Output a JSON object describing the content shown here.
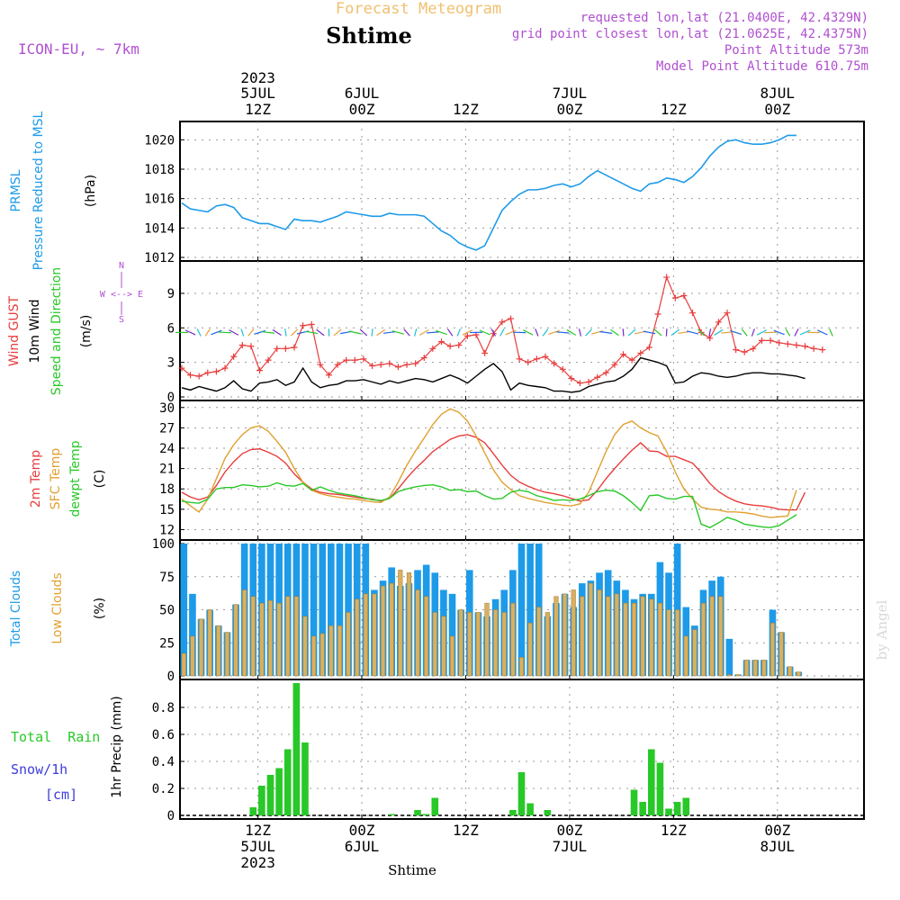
{
  "header": {
    "product_title": "Forecast Meteogram",
    "location": "Shtime",
    "model": "ICON-EU, ~ 7km",
    "requested": "requested lon,lat (21.0400E, 42.4329N)",
    "grid_point": "grid point closest lon,lat (21.0625E, 42.4375N)",
    "point_altitude": "Point Altitude 573m",
    "model_altitude": "Model Point Altitude 610.75m",
    "watermark": "by Angel",
    "footer": "Shtime"
  },
  "colors": {
    "pressure": "#1e9be8",
    "gust": "#e83c3c",
    "wind": "#000000",
    "wind_arrows": [
      "#28c828",
      "#1ebed2",
      "#1e64e6",
      "#7828c8",
      "#e6a03c"
    ],
    "temp": "#e83c3c",
    "sfc_temp": "#e0a030",
    "dewpt": "#28c828",
    "total_clouds": "#1e9be8",
    "low_clouds": "#d8b060",
    "precip": "#28c828",
    "purple": "#b050d0",
    "orange_title": "#f0c070"
  },
  "time_axis": {
    "top_ticks": [
      {
        "date": "5JUL",
        "hour": "12Z",
        "year": "2023"
      },
      {
        "date": "6JUL",
        "hour": "00Z",
        "year": ""
      },
      {
        "date": "",
        "hour": "12Z",
        "year": ""
      },
      {
        "date": "7JUL",
        "hour": "00Z",
        "year": ""
      },
      {
        "date": "",
        "hour": "12Z",
        "year": ""
      },
      {
        "date": "8JUL",
        "hour": "00Z",
        "year": ""
      }
    ],
    "bottom_ticks": [
      {
        "hour": "12Z",
        "date": "5JUL",
        "year": "2023"
      },
      {
        "hour": "00Z",
        "date": "6JUL",
        "year": ""
      },
      {
        "hour": "12Z",
        "date": "",
        "year": ""
      },
      {
        "hour": "00Z",
        "date": "7JUL",
        "year": ""
      },
      {
        "hour": "12Z",
        "date": "",
        "year": ""
      },
      {
        "hour": "00Z",
        "date": "8JUL",
        "year": ""
      }
    ]
  },
  "panels": {
    "pressure": {
      "labels": [
        "PRMSL",
        "Pressure Reduced to MSL"
      ],
      "unit": "(hPa)"
    },
    "wind": {
      "labels": [
        "Wind GUST",
        "10m Wind",
        "Speed and Direction"
      ],
      "unit": "(m/s)",
      "compass": [
        "N",
        "W <--> E",
        "S"
      ]
    },
    "temp": {
      "labels": [
        "2m Temp",
        "SFC Temp",
        "dewpt Temp"
      ],
      "unit": "(C)"
    },
    "clouds": {
      "labels": [
        "Total Clouds",
        "Low Clouds"
      ],
      "unit": "(%)"
    },
    "precip": {
      "labels": [
        "Total  Rain",
        "Snow/1h",
        "[cm]"
      ],
      "unit": "1hr Precip (mm)"
    }
  },
  "chart_data": [
    {
      "type": "line",
      "title": "PRMSL Pressure Reduced to MSL",
      "ylabel": "(hPa)",
      "ylim": [
        1012,
        1021
      ],
      "yticks": [
        1012,
        1014,
        1016,
        1018,
        1020
      ],
      "x_hours_from_start": [
        0,
        1,
        2,
        3,
        4,
        5,
        6,
        7,
        8,
        9,
        10,
        11,
        12,
        13,
        14,
        15,
        16,
        17,
        18,
        19,
        20,
        21,
        22,
        23,
        24,
        25,
        26,
        27,
        28,
        29,
        30,
        31,
        32,
        33,
        34,
        35,
        36,
        37,
        38,
        39,
        40,
        41,
        42,
        43,
        44,
        45,
        46,
        47,
        48,
        49,
        50,
        51,
        52,
        53,
        54,
        55,
        56,
        57,
        58,
        59,
        60,
        61,
        62,
        63,
        64,
        65,
        66,
        67,
        68,
        69,
        70,
        71,
        72,
        73,
        74,
        75,
        76,
        77,
        78,
        79
      ],
      "series": [
        {
          "values": [
            1015.7,
            1015.3,
            1015.2,
            1015.1,
            1015.5,
            1015.6,
            1015.4,
            1014.7,
            1014.5,
            1014.3,
            1014.3,
            1014.1,
            1013.9,
            1014.6,
            1014.5,
            1014.5,
            1014.4,
            1014.6,
            1014.8,
            1015.1,
            1015.0,
            1014.9,
            1014.8,
            1014.8,
            1015.0,
            1014.9,
            1014.9,
            1014.9,
            1014.8,
            1014.3,
            1013.8,
            1013.5,
            1013.0,
            1012.7,
            1012.5,
            1012.8,
            1014.0,
            1015.2,
            1015.8,
            1016.3,
            1016.6,
            1016.6,
            1016.7,
            1016.9,
            1017.0,
            1016.8,
            1017.0,
            1017.5,
            1017.9,
            1017.6,
            1017.3,
            1017.0,
            1016.7,
            1016.5,
            1017.0,
            1017.1,
            1017.4,
            1017.3,
            1017.1,
            1017.5,
            1018.1,
            1018.9,
            1019.5,
            1019.9,
            1020.0,
            1019.8,
            1019.7,
            1019.7,
            1019.8,
            1020.0,
            1020.3,
            1020.3
          ]
        }
      ]
    },
    {
      "type": "line",
      "title": "Wind GUST / 10m Wind Speed and Direction",
      "ylabel": "(m/s)",
      "ylim": [
        0,
        11.5
      ],
      "yticks": [
        0,
        3,
        6,
        9
      ],
      "series": [
        {
          "name": "Wind GUST",
          "values": [
            2.5,
            1.9,
            1.8,
            2.1,
            2.2,
            2.5,
            3.5,
            4.5,
            4.4,
            2.3,
            3.2,
            4.2,
            4.2,
            4.3,
            6.2,
            6.3,
            2.8,
            1.9,
            2.8,
            3.2,
            3.2,
            3.3,
            2.7,
            2.8,
            2.9,
            2.6,
            2.8,
            2.9,
            3.4,
            4.2,
            4.8,
            4.4,
            4.5,
            5.3,
            5.4,
            3.8,
            5.5,
            6.5,
            6.8,
            3.3,
            3.0,
            3.3,
            3.5,
            2.9,
            2.4,
            1.6,
            1.2,
            1.3,
            1.7,
            2.1,
            2.8,
            3.7,
            3.2,
            3.8,
            4.3,
            7.2,
            10.4,
            8.6,
            8.8,
            7.3,
            5.6,
            5.1,
            6.5,
            7.3,
            4.1,
            3.9,
            4.2,
            4.9,
            4.9,
            4.7,
            4.6,
            4.5,
            4.4,
            4.2,
            4.1
          ]
        },
        {
          "name": "10m Wind",
          "values": [
            0.8,
            0.6,
            0.9,
            0.7,
            0.5,
            0.8,
            1.4,
            0.7,
            0.5,
            1.2,
            1.3,
            1.5,
            1.0,
            1.3,
            2.5,
            1.3,
            0.8,
            1.0,
            1.1,
            1.4,
            1.4,
            1.5,
            1.3,
            1.1,
            1.4,
            1.2,
            1.4,
            1.6,
            1.5,
            1.3,
            1.6,
            1.9,
            1.6,
            1.2,
            1.8,
            2.4,
            2.9,
            2.2,
            0.6,
            1.2,
            1.0,
            0.9,
            0.8,
            0.5,
            0.5,
            0.4,
            0.5,
            0.9,
            1.1,
            1.3,
            1.4,
            1.8,
            2.4,
            3.4,
            3.2,
            3.0,
            2.7,
            1.2,
            1.3,
            1.8,
            2.1,
            2.0,
            1.8,
            1.7,
            1.8,
            2.0,
            2.1,
            2.1,
            2.0,
            2.0,
            1.9,
            1.8,
            1.6
          ]
        }
      ]
    },
    {
      "type": "line",
      "title": "2m Temp / SFC Temp / dewpt Temp",
      "ylabel": "(C)",
      "ylim": [
        11,
        30.5
      ],
      "yticks": [
        12,
        15,
        18,
        21,
        24,
        27,
        30
      ],
      "series": [
        {
          "name": "2m Temp",
          "values": [
            17.5,
            16.8,
            16.4,
            16.8,
            18.5,
            20.5,
            22.0,
            23.2,
            23.8,
            23.9,
            23.4,
            22.8,
            21.8,
            20.2,
            19.0,
            18.0,
            17.5,
            17.3,
            17.2,
            17.0,
            16.8,
            16.6,
            16.5,
            16.2,
            16.6,
            18.0,
            19.6,
            21.0,
            22.2,
            23.5,
            24.4,
            25.3,
            25.8,
            26.0,
            25.6,
            24.8,
            23.2,
            21.5,
            20.0,
            19.0,
            18.4,
            17.9,
            17.5,
            17.3,
            17.0,
            16.6,
            16.2,
            16.4,
            17.8,
            19.5,
            21.0,
            22.4,
            23.7,
            24.8,
            23.6,
            23.5,
            22.8,
            22.8,
            22.3,
            21.8,
            20.4,
            18.8,
            17.6,
            16.8,
            16.2,
            15.8,
            15.6,
            15.5,
            15.3,
            15.0,
            14.9,
            14.9,
            17.5
          ]
        },
        {
          "name": "SFC Temp",
          "values": [
            16.5,
            15.5,
            14.6,
            16.5,
            19.5,
            22.5,
            24.5,
            26.0,
            27.0,
            27.3,
            26.5,
            25.0,
            23.4,
            21.0,
            19.0,
            17.8,
            17.3,
            17.0,
            16.8,
            16.6,
            16.5,
            16.3,
            16.1,
            16.0,
            16.8,
            19.0,
            21.5,
            23.6,
            25.5,
            27.5,
            29.0,
            29.8,
            29.3,
            28.0,
            25.8,
            23.3,
            20.8,
            19.0,
            17.9,
            17.0,
            16.6,
            16.3,
            16.0,
            15.8,
            15.6,
            15.5,
            15.8,
            17.5,
            20.5,
            23.5,
            26.0,
            27.5,
            28.0,
            27.0,
            26.3,
            25.8,
            23.5,
            20.5,
            18.0,
            16.5,
            15.3,
            15.0,
            14.9,
            14.6,
            14.6,
            14.5,
            14.3,
            14.0,
            13.8,
            13.9,
            14.0,
            17.8
          ]
        },
        {
          "name": "dewpt Temp",
          "values": [
            16.2,
            16.0,
            15.9,
            16.5,
            18.0,
            18.2,
            18.2,
            18.6,
            18.5,
            18.3,
            18.4,
            18.9,
            18.5,
            18.4,
            18.8,
            17.8,
            18.3,
            17.8,
            17.4,
            17.2,
            17.0,
            16.7,
            16.4,
            16.3,
            16.6,
            17.6,
            18.0,
            18.3,
            18.5,
            18.6,
            18.3,
            17.8,
            17.9,
            17.6,
            17.7,
            17.0,
            16.5,
            16.6,
            17.5,
            17.8,
            17.6,
            17.0,
            16.7,
            16.3,
            16.4,
            16.3,
            16.5,
            17.0,
            17.6,
            17.8,
            17.7,
            17.0,
            16.0,
            14.8,
            17.0,
            17.1,
            16.6,
            16.5,
            16.9,
            16.9,
            12.8,
            12.3,
            13.0,
            13.8,
            13.4,
            12.8,
            12.6,
            12.4,
            12.3,
            12.6,
            13.4,
            14.2
          ]
        }
      ]
    },
    {
      "type": "bar",
      "title": "Total Clouds / Low Clouds",
      "ylabel": "(%)",
      "ylim": [
        0,
        100
      ],
      "yticks": [
        0,
        25,
        50,
        75,
        100
      ],
      "series": [
        {
          "name": "Total Clouds",
          "values": [
            100,
            62,
            43,
            50,
            38,
            33,
            54,
            100,
            100,
            100,
            100,
            100,
            100,
            100,
            100,
            100,
            100,
            100,
            100,
            100,
            100,
            100,
            65,
            72,
            82,
            68,
            70,
            80,
            84,
            78,
            65,
            62,
            50,
            80,
            48,
            45,
            58,
            65,
            80,
            100,
            100,
            100,
            45,
            55,
            62,
            52,
            70,
            72,
            78,
            80,
            72,
            65,
            58,
            62,
            62,
            86,
            78,
            100,
            52,
            38,
            65,
            72,
            75,
            28,
            1,
            12,
            12,
            12,
            50,
            33,
            7,
            3
          ]
        },
        {
          "name": "Low Clouds",
          "values": [
            17,
            30,
            43,
            50,
            38,
            33,
            54,
            65,
            60,
            55,
            57,
            55,
            60,
            60,
            45,
            30,
            32,
            38,
            38,
            48,
            58,
            62,
            62,
            68,
            70,
            80,
            78,
            65,
            60,
            48,
            45,
            30,
            50,
            48,
            48,
            55,
            50,
            48,
            55,
            14,
            40,
            52,
            48,
            60,
            62,
            65,
            60,
            70,
            65,
            60,
            62,
            55,
            55,
            60,
            58,
            55,
            50,
            50,
            30,
            35,
            55,
            60,
            60,
            1,
            1,
            12,
            12,
            12,
            40,
            33,
            7,
            3
          ]
        }
      ]
    },
    {
      "type": "bar",
      "title": "1hr Precip",
      "ylabel": "1hr Precip (mm)",
      "ylim": [
        0,
        0.98
      ],
      "yticks": [
        0,
        0.2,
        0.4,
        0.6,
        0.8
      ],
      "categories_hour_index": [
        8,
        9,
        10,
        11,
        12,
        13,
        14,
        24,
        27,
        28,
        29,
        38,
        39,
        40,
        42,
        52,
        53,
        54,
        55,
        56,
        57,
        58
      ],
      "series": [
        {
          "name": "Total Rain",
          "values": [
            0.06,
            0.22,
            0.3,
            0.35,
            0.49,
            0.98,
            0.54,
            0.01,
            0.04,
            0.01,
            0.13,
            0.04,
            0.32,
            0.09,
            0.04,
            0.19,
            0.1,
            0.49,
            0.39,
            0.05,
            0.1,
            0.13
          ]
        }
      ]
    }
  ]
}
